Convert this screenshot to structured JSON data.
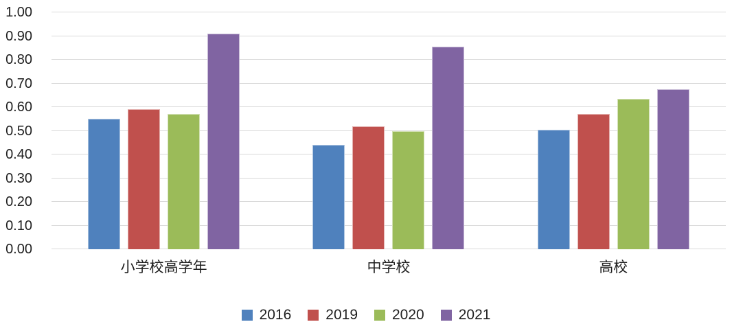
{
  "chart_data": {
    "type": "bar",
    "title": "",
    "categories": [
      "小学校高学年",
      "中学校",
      "高校"
    ],
    "series": [
      {
        "name": "2016",
        "color": "#4F81BD",
        "values": [
          0.55,
          0.44,
          0.505
        ]
      },
      {
        "name": "2019",
        "color": "#C0504D",
        "values": [
          0.59,
          0.52,
          0.57
        ]
      },
      {
        "name": "2020",
        "color": "#9BBB59",
        "values": [
          0.57,
          0.5,
          0.635
        ]
      },
      {
        "name": "2021",
        "color": "#8064A2",
        "values": [
          0.91,
          0.855,
          0.675
        ]
      }
    ],
    "xlabel": "",
    "ylabel": "",
    "ylim": [
      0,
      1
    ],
    "ytick_step": 0.1,
    "ytick_labels": [
      "0.00",
      "0.10",
      "0.20",
      "0.30",
      "0.40",
      "0.50",
      "0.60",
      "0.70",
      "0.80",
      "0.90",
      "1.00"
    ],
    "grid": true,
    "legend_position": "bottom",
    "colors": {
      "gridline": "#D9D9D9",
      "axis_text": "#1F1F1F",
      "background": "#FFFFFF"
    }
  }
}
